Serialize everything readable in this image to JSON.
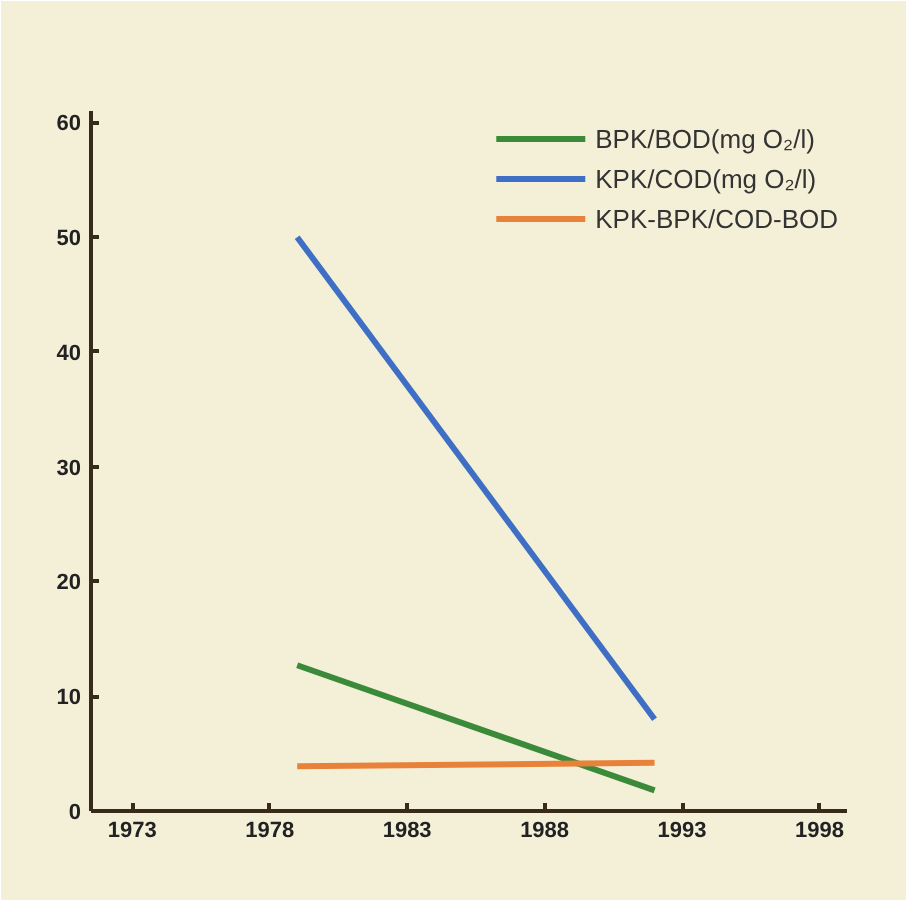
{
  "chart_data": {
    "type": "line",
    "x": [
      1979,
      1992
    ],
    "series": [
      {
        "name": "BPK/BOD(mg O₂/l)",
        "color": "#3a8a3a",
        "values": [
          12.7,
          1.8
        ]
      },
      {
        "name": "KPK/COD(mg O₂/l)",
        "color": "#3f6fc4",
        "values": [
          50,
          8
        ]
      },
      {
        "name": "KPK-BPK/COD-BOD",
        "color": "#e8823a",
        "values": [
          3.9,
          4.2
        ]
      }
    ],
    "xlim": [
      1971.5,
      1999
    ],
    "xticks": [
      1973,
      1978,
      1983,
      1988,
      1993,
      1998
    ],
    "ylim": [
      0,
      61
    ],
    "yticks": [
      0,
      10,
      20,
      30,
      40,
      50,
      60
    ],
    "grid": false,
    "legend": "top right",
    "marker": "none",
    "line_style": "solid"
  }
}
